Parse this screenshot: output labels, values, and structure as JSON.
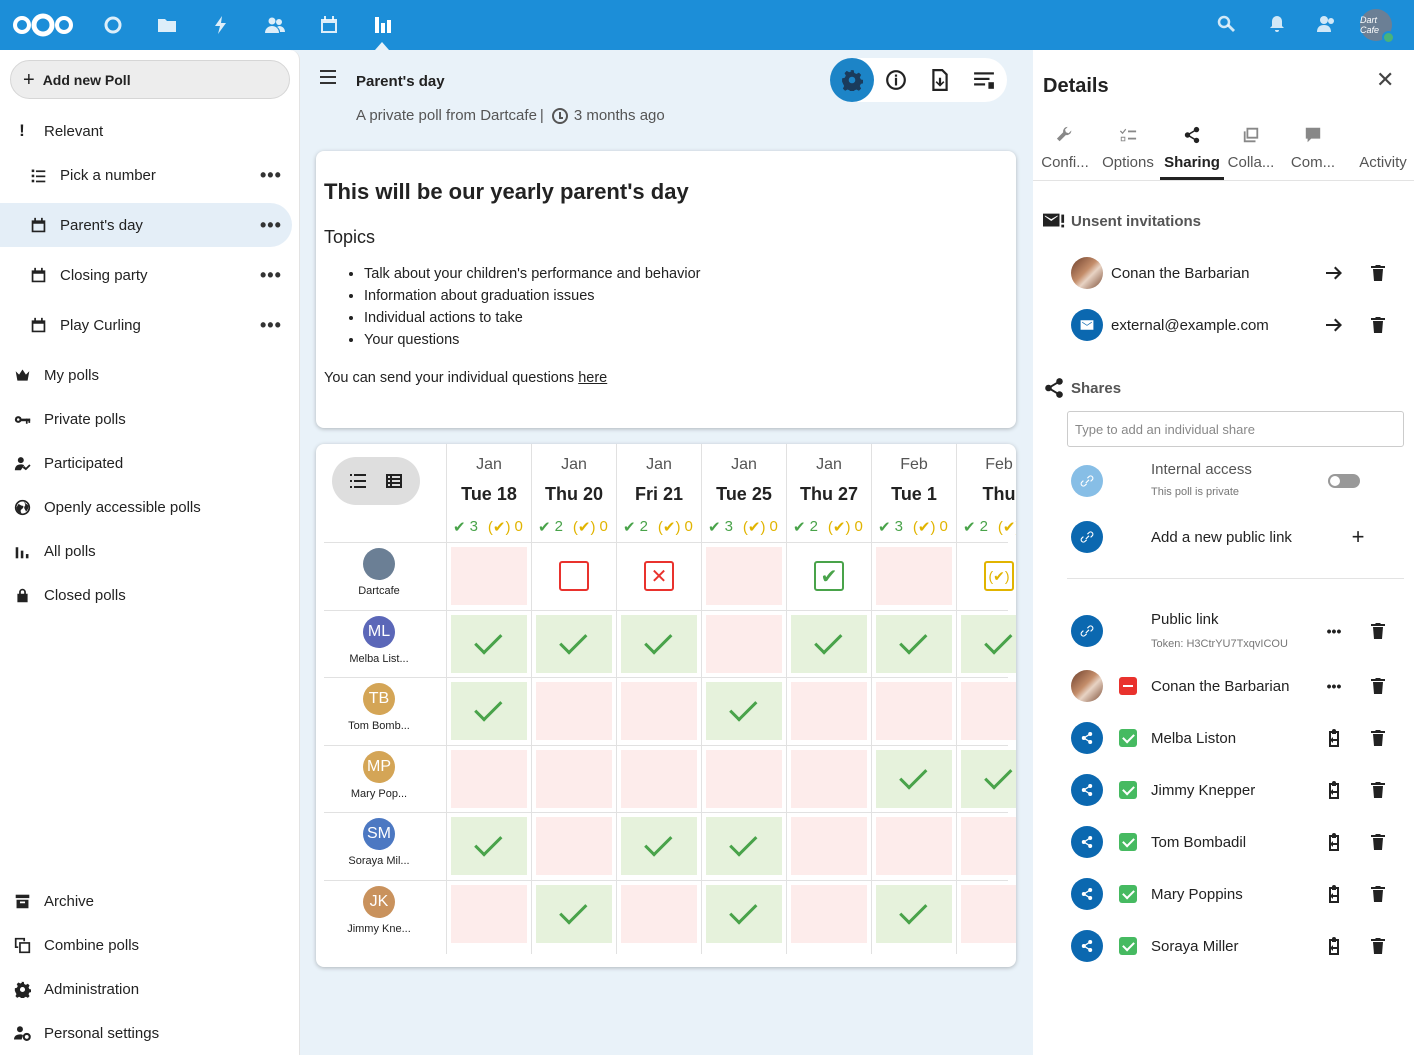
{
  "topbar": {
    "apps": [
      "dashboard-icon",
      "files-icon",
      "activity-icon",
      "contacts-icon",
      "calendar-icon",
      "polls-icon"
    ],
    "avatar_text": "Dart Cafe"
  },
  "nav": {
    "add_poll": "Add new Poll",
    "relevant": "Relevant",
    "relevant_polls": [
      "Pick a number",
      "Parent's day",
      "Closing party",
      "Play Curling"
    ],
    "items": [
      "My polls",
      "Private polls",
      "Participated",
      "Openly accessible polls",
      "All polls",
      "Closed polls"
    ],
    "bottom": [
      "Archive",
      "Combine polls",
      "Administration",
      "Personal settings"
    ],
    "more": "•••"
  },
  "poll": {
    "title": "Parent's day",
    "subtitle": "A private poll from Dartcafe",
    "age": "3 months ago",
    "desc_heading": "This will be our yearly parent's day",
    "desc_topics": "Topics",
    "desc_items": [
      "Talk about your children's performance and behavior",
      "Information about graduation issues",
      "Individual actions to take",
      "Your questions"
    ],
    "desc_footer": "You can send your individual questions",
    "desc_link": "here"
  },
  "grid": {
    "options": [
      {
        "month": "Jan",
        "day": "Tue 18",
        "yes": "3",
        "maybe": "0"
      },
      {
        "month": "Jan",
        "day": "Thu 20",
        "yes": "2",
        "maybe": "0"
      },
      {
        "month": "Jan",
        "day": "Fri 21",
        "yes": "2",
        "maybe": "0"
      },
      {
        "month": "Jan",
        "day": "Tue 25",
        "yes": "3",
        "maybe": "0"
      },
      {
        "month": "Jan",
        "day": "Thu 27",
        "yes": "2",
        "maybe": "0"
      },
      {
        "month": "Feb",
        "day": "Tue 1",
        "yes": "3",
        "maybe": "0"
      },
      {
        "month": "Feb",
        "day": "Thu",
        "yes": "2",
        "maybe": ""
      }
    ],
    "participants": [
      {
        "initials": "",
        "name": "Dartcafe",
        "color": "#6b7f95",
        "votes": [
          "no",
          "empty",
          "x",
          "no",
          "check",
          "no",
          "maybe"
        ]
      },
      {
        "initials": "ML",
        "name": "Melba List...",
        "color": "#5b67b8",
        "votes": [
          "yes",
          "yes",
          "yes",
          "no",
          "yes",
          "yes",
          "yes"
        ]
      },
      {
        "initials": "TB",
        "name": "Tom Bomb...",
        "color": "#d4a556",
        "votes": [
          "yes",
          "no",
          "no",
          "yes",
          "no",
          "no",
          "no"
        ]
      },
      {
        "initials": "MP",
        "name": "Mary Pop...",
        "color": "#d4a556",
        "votes": [
          "no",
          "no",
          "no",
          "no",
          "no",
          "yes",
          "yes"
        ]
      },
      {
        "initials": "SM",
        "name": "Soraya Mil...",
        "color": "#4c78c2",
        "votes": [
          "yes",
          "no",
          "yes",
          "yes",
          "no",
          "no",
          "no"
        ]
      },
      {
        "initials": "JK",
        "name": "Jimmy Kne...",
        "color": "#c9925d",
        "votes": [
          "no",
          "yes",
          "no",
          "yes",
          "no",
          "yes",
          "no"
        ]
      }
    ]
  },
  "side": {
    "title": "Details",
    "tabs": [
      "Confi...",
      "Options",
      "Sharing",
      "Colla...",
      "Com...",
      "Activity"
    ],
    "unsent_heading": "Unsent invitations",
    "unsent": [
      "Conan the Barbarian",
      "external@example.com"
    ],
    "shares_heading": "Shares",
    "share_placeholder": "Type to add an individual share",
    "internal_access": "Internal access",
    "internal_sub": "This poll is private",
    "add_public": "Add a new public link",
    "public_link": "Public link",
    "public_token": "Token: H3CtrYU7TxqvICOU",
    "shares": [
      "Conan the Barbarian",
      "Melba Liston",
      "Jimmy Knepper",
      "Tom Bombadil",
      "Mary Poppins",
      "Soraya Miller"
    ]
  },
  "colors": {
    "primary": "#1c8ed8",
    "yes": "#49a34a",
    "maybe": "#e1b400",
    "no": "#e9322d"
  }
}
